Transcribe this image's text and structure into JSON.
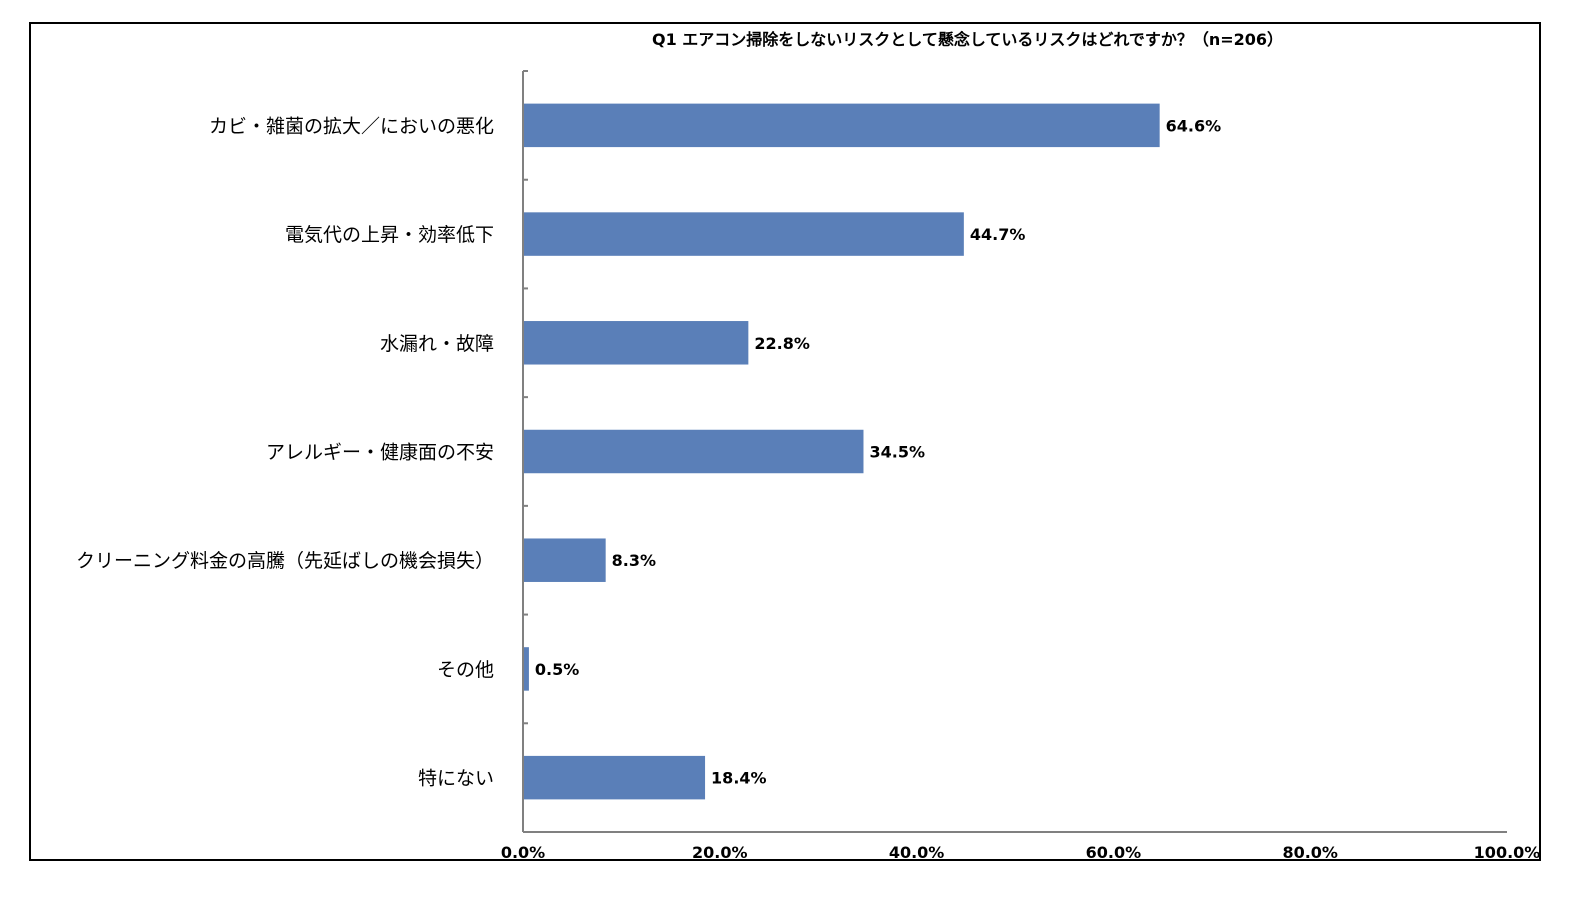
{
  "chart_data": {
    "type": "bar",
    "orientation": "horizontal",
    "title": "Q1 エアコン掃除をしないリスクとして懸念しているリスクはどれですか？（n=206）",
    "categories": [
      "カビ・雑菌の拡大／においの悪化",
      "電気代の上昇・効率低下",
      "水漏れ・故障",
      "アレルギー・健康面の不安",
      "クリーニング料金の高騰（先延ばしの機会損失）",
      "その他",
      "特にない"
    ],
    "values": [
      64.6,
      44.7,
      22.8,
      34.5,
      8.3,
      0.5,
      18.4
    ],
    "value_labels": [
      "64.6%",
      "44.7%",
      "22.8%",
      "34.5%",
      "8.3%",
      "0.5%",
      "18.4%"
    ],
    "xlim": [
      0,
      100
    ],
    "x_ticks": [
      "0.0%",
      "20.0%",
      "40.0%",
      "60.0%",
      "80.0%",
      "100.0%"
    ],
    "grid": false,
    "legend": "none",
    "bar_color": "#5a7fb8"
  }
}
